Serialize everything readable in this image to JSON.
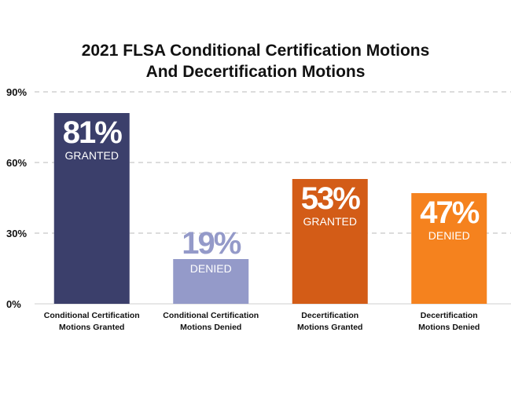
{
  "chart_data": {
    "type": "bar",
    "title": [
      "2021 FLSA Conditional Certification Motions",
      "And Decertification Motions"
    ],
    "categories": [
      [
        "Conditional Certification",
        "Motions Granted"
      ],
      [
        "Conditional Certification",
        "Motions Denied"
      ],
      [
        "Decertification",
        "Motions Granted"
      ],
      [
        "Decertification",
        "Motions Denied"
      ]
    ],
    "values": [
      81,
      19,
      53,
      47
    ],
    "value_labels": [
      "81%",
      "19%",
      "53%",
      "47%"
    ],
    "sub_labels": [
      "GRANTED",
      "DENIED",
      "GRANTED",
      "DENIED"
    ],
    "colors": [
      "#3b3f6b",
      "#949ac9",
      "#d35c17",
      "#f5821e"
    ],
    "label_colors": [
      "#ffffff",
      "#ffffff",
      "#ffffff",
      "#ffffff"
    ],
    "value_label_colors": [
      "#ffffff",
      "#949ac9",
      "#ffffff",
      "#ffffff"
    ],
    "sub_label_colors": [
      "#ffffff",
      "#ffffff",
      "#ffffff",
      "#ffffff"
    ],
    "label_position": [
      "inside",
      "above-pct",
      "inside",
      "inside"
    ],
    "yticks": [
      "0%",
      "30%",
      "60%",
      "90%"
    ],
    "ytick_values": [
      0,
      30,
      60,
      90
    ],
    "ylim": [
      0,
      90
    ],
    "grid": true,
    "grid_style": "dashed",
    "xlabel": "",
    "ylabel": ""
  }
}
